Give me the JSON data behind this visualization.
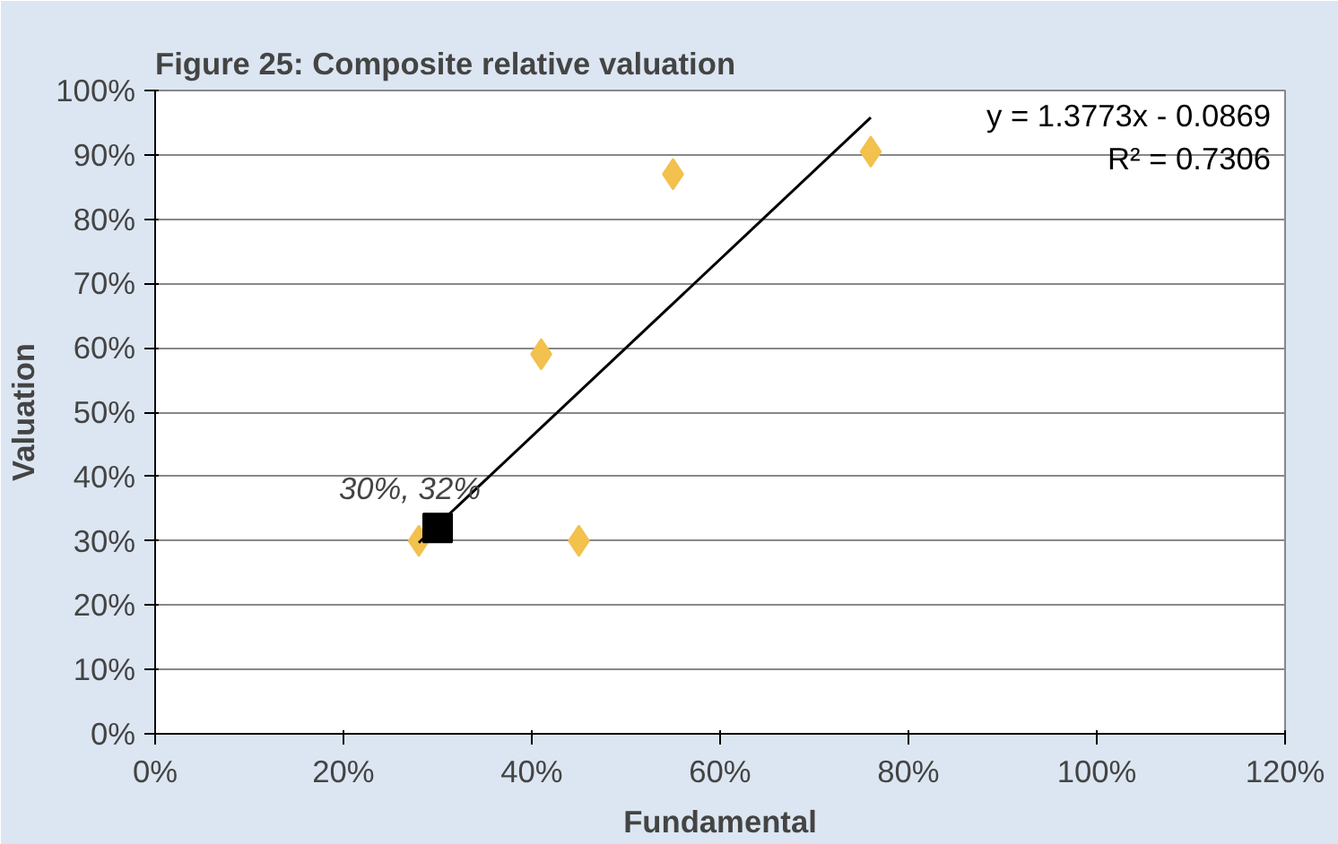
{
  "chart_data": {
    "type": "scatter",
    "title": "Figure 25: Composite relative valuation",
    "xlabel": "Fundamental",
    "ylabel": "Valuation",
    "xlim": [
      0,
      120
    ],
    "ylim": [
      0,
      100
    ],
    "xticks": [
      {
        "value": 0,
        "label": "0%"
      },
      {
        "value": 20,
        "label": "20%"
      },
      {
        "value": 40,
        "label": "40%"
      },
      {
        "value": 60,
        "label": "60%"
      },
      {
        "value": 80,
        "label": "80%"
      },
      {
        "value": 100,
        "label": "100%"
      },
      {
        "value": 120,
        "label": "120%"
      }
    ],
    "yticks": [
      {
        "value": 0,
        "label": "0%"
      },
      {
        "value": 10,
        "label": "10%"
      },
      {
        "value": 20,
        "label": "20%"
      },
      {
        "value": 30,
        "label": "30%"
      },
      {
        "value": 40,
        "label": "40%"
      },
      {
        "value": 50,
        "label": "50%"
      },
      {
        "value": 60,
        "label": "60%"
      },
      {
        "value": 70,
        "label": "70%"
      },
      {
        "value": 80,
        "label": "80%"
      },
      {
        "value": 90,
        "label": "90%"
      },
      {
        "value": 100,
        "label": "100%"
      }
    ],
    "grid": "y",
    "series": [
      {
        "type": "scatter",
        "marker": "diamond",
        "color": "#f2c14e",
        "x": [
          28,
          41,
          45,
          55,
          76
        ],
        "values": [
          30,
          59,
          30,
          87,
          90.5
        ]
      },
      {
        "type": "line",
        "marker": "none",
        "color": "#000000",
        "x": [
          28,
          76
        ],
        "values": [
          29.7,
          95.8
        ]
      },
      {
        "type": "scatter",
        "marker": "square",
        "color": "#000000",
        "x": [
          30
        ],
        "values": [
          32
        ]
      }
    ],
    "annotations": [
      "y = 1.3773x - 0.0869",
      "R² = 0.7306",
      {
        "text": "30%, 32%",
        "x": 30,
        "y": 32
      }
    ]
  }
}
